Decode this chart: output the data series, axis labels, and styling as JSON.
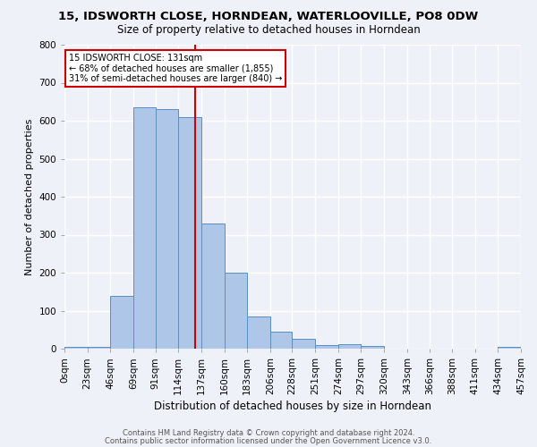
{
  "title1": "15, IDSWORTH CLOSE, HORNDEAN, WATERLOOVILLE, PO8 0DW",
  "title2": "Size of property relative to detached houses in Horndean",
  "xlabel": "Distribution of detached houses by size in Horndean",
  "ylabel": "Number of detached properties",
  "footnote1": "Contains HM Land Registry data © Crown copyright and database right 2024.",
  "footnote2": "Contains public sector information licensed under the Open Government Licence v3.0.",
  "annotation_line1": "15 IDSWORTH CLOSE: 131sqm",
  "annotation_line2": "← 68% of detached houses are smaller (1,855)",
  "annotation_line3": "31% of semi-detached houses are larger (840) →",
  "bar_edges": [
    0,
    23,
    46,
    69,
    91,
    114,
    137,
    160,
    183,
    206,
    228,
    251,
    274,
    297,
    320,
    343,
    366,
    388,
    411,
    434,
    457
  ],
  "bar_heights": [
    5,
    5,
    140,
    635,
    630,
    610,
    330,
    200,
    85,
    45,
    27,
    10,
    12,
    7,
    0,
    0,
    0,
    0,
    0,
    5
  ],
  "bar_color": "#aec6e8",
  "bar_edge_color": "#5a8fc2",
  "vline_x": 131,
  "vline_color": "#cc0000",
  "bg_color": "#eef2f8",
  "grid_color": "#ffffff",
  "ylim": [
    0,
    800
  ],
  "yticks": [
    0,
    100,
    200,
    300,
    400,
    500,
    600,
    700,
    800
  ],
  "annotation_box_color": "#ffffff",
  "annotation_box_edge": "#cc0000",
  "title1_fontsize": 9.5,
  "title2_fontsize": 8.5,
  "xlabel_fontsize": 8.5,
  "ylabel_fontsize": 8,
  "tick_fontsize": 7.5,
  "footnote_fontsize": 6
}
